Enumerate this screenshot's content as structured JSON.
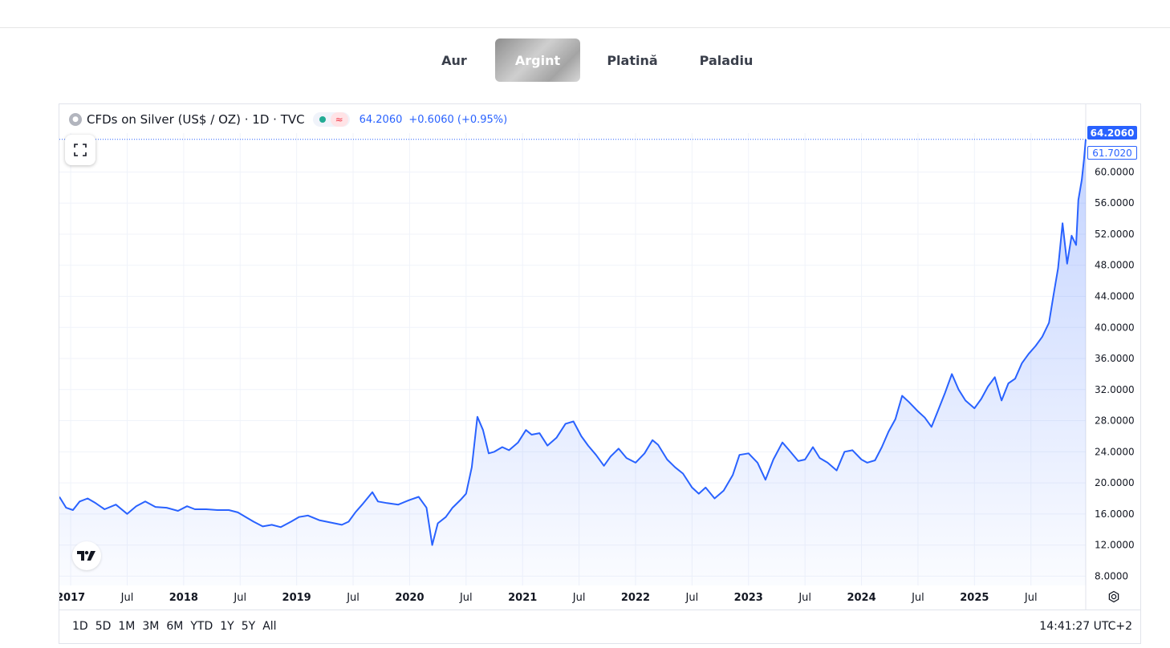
{
  "metal_tabs": [
    {
      "label": "Aur",
      "active": false
    },
    {
      "label": "Argint",
      "active": true
    },
    {
      "label": "Platină",
      "active": false
    },
    {
      "label": "Paladiu",
      "active": false
    }
  ],
  "legend": {
    "symbol": "CFDs on Silver (US$ / OZ) · 1D · TVC",
    "last_value": "64.2060",
    "change": "+0.6060 (+0.95%)",
    "status_icon": "green-dot-icon",
    "approx_icon": "≈"
  },
  "price_tags": {
    "last": "64.2060",
    "previous": "61.7020"
  },
  "time_ranges": [
    "1D",
    "5D",
    "1M",
    "3M",
    "6M",
    "YTD",
    "1Y",
    "5Y",
    "All"
  ],
  "clock": "14:41:27 UTC+2",
  "colors": {
    "line": "#2962ff",
    "active_tab": "#b0b0b0",
    "grid": "#f0f3fa"
  },
  "chart_data": {
    "type": "area",
    "title": "CFDs on Silver (US$ / OZ)",
    "xlabel": "",
    "ylabel": "",
    "y_tick_labels": [
      "8.0000",
      "12.0000",
      "16.0000",
      "20.0000",
      "24.0000",
      "28.0000",
      "32.0000",
      "36.0000",
      "40.0000",
      "44.0000",
      "48.0000",
      "52.0000",
      "56.0000",
      "60.0000"
    ],
    "y_ticks": [
      8,
      12,
      16,
      20,
      24,
      28,
      32,
      36,
      40,
      44,
      48,
      52,
      56,
      60
    ],
    "x_tick_labels": [
      {
        "label": "2017",
        "t": 2017.0
      },
      {
        "label": "Jul",
        "t": 2017.5
      },
      {
        "label": "2018",
        "t": 2018.0
      },
      {
        "label": "Jul",
        "t": 2018.5
      },
      {
        "label": "2019",
        "t": 2019.0
      },
      {
        "label": "Jul",
        "t": 2019.5
      },
      {
        "label": "2020",
        "t": 2020.0
      },
      {
        "label": "Jul",
        "t": 2020.5
      },
      {
        "label": "2021",
        "t": 2021.0
      },
      {
        "label": "Jul",
        "t": 2021.5
      },
      {
        "label": "2022",
        "t": 2022.0
      },
      {
        "label": "Jul",
        "t": 2022.5
      },
      {
        "label": "2023",
        "t": 2023.0
      },
      {
        "label": "Jul",
        "t": 2023.5
      },
      {
        "label": "2024",
        "t": 2024.0
      },
      {
        "label": "Jul",
        "t": 2024.5
      },
      {
        "label": "2025",
        "t": 2025.0
      },
      {
        "label": "Jul",
        "t": 2025.5
      }
    ],
    "series": [
      {
        "values": [
          [
            2016.9,
            18.2
          ],
          [
            2016.96,
            16.8
          ],
          [
            2017.02,
            16.5
          ],
          [
            2017.08,
            17.6
          ],
          [
            2017.15,
            18.0
          ],
          [
            2017.22,
            17.4
          ],
          [
            2017.3,
            16.6
          ],
          [
            2017.4,
            17.2
          ],
          [
            2017.5,
            16.0
          ],
          [
            2017.58,
            17.0
          ],
          [
            2017.66,
            17.6
          ],
          [
            2017.75,
            16.9
          ],
          [
            2017.85,
            16.8
          ],
          [
            2017.95,
            16.4
          ],
          [
            2018.03,
            17.0
          ],
          [
            2018.1,
            16.6
          ],
          [
            2018.2,
            16.6
          ],
          [
            2018.3,
            16.5
          ],
          [
            2018.4,
            16.5
          ],
          [
            2018.48,
            16.2
          ],
          [
            2018.55,
            15.6
          ],
          [
            2018.62,
            15.0
          ],
          [
            2018.7,
            14.4
          ],
          [
            2018.78,
            14.6
          ],
          [
            2018.86,
            14.3
          ],
          [
            2018.95,
            15.0
          ],
          [
            2019.02,
            15.6
          ],
          [
            2019.1,
            15.8
          ],
          [
            2019.2,
            15.2
          ],
          [
            2019.3,
            14.9
          ],
          [
            2019.4,
            14.6
          ],
          [
            2019.46,
            15.0
          ],
          [
            2019.52,
            16.2
          ],
          [
            2019.58,
            17.2
          ],
          [
            2019.67,
            18.8
          ],
          [
            2019.72,
            17.6
          ],
          [
            2019.8,
            17.4
          ],
          [
            2019.9,
            17.2
          ],
          [
            2020.0,
            17.8
          ],
          [
            2020.08,
            18.2
          ],
          [
            2020.15,
            16.8
          ],
          [
            2020.2,
            12.0
          ],
          [
            2020.25,
            14.8
          ],
          [
            2020.32,
            15.6
          ],
          [
            2020.38,
            16.8
          ],
          [
            2020.45,
            17.8
          ],
          [
            2020.5,
            18.6
          ],
          [
            2020.55,
            22.0
          ],
          [
            2020.6,
            28.5
          ],
          [
            2020.65,
            26.8
          ],
          [
            2020.7,
            23.8
          ],
          [
            2020.75,
            24.0
          ],
          [
            2020.82,
            24.6
          ],
          [
            2020.88,
            24.2
          ],
          [
            2020.96,
            25.2
          ],
          [
            2021.03,
            26.8
          ],
          [
            2021.08,
            26.2
          ],
          [
            2021.15,
            26.4
          ],
          [
            2021.22,
            24.8
          ],
          [
            2021.3,
            25.8
          ],
          [
            2021.38,
            27.6
          ],
          [
            2021.45,
            27.9
          ],
          [
            2021.52,
            26.0
          ],
          [
            2021.58,
            24.8
          ],
          [
            2021.65,
            23.6
          ],
          [
            2021.72,
            22.2
          ],
          [
            2021.78,
            23.4
          ],
          [
            2021.85,
            24.4
          ],
          [
            2021.92,
            23.2
          ],
          [
            2022.0,
            22.6
          ],
          [
            2022.08,
            23.8
          ],
          [
            2022.15,
            25.5
          ],
          [
            2022.2,
            24.9
          ],
          [
            2022.28,
            23.0
          ],
          [
            2022.35,
            22.0
          ],
          [
            2022.42,
            21.2
          ],
          [
            2022.5,
            19.4
          ],
          [
            2022.56,
            18.6
          ],
          [
            2022.62,
            19.4
          ],
          [
            2022.7,
            18.0
          ],
          [
            2022.78,
            19.0
          ],
          [
            2022.86,
            21.0
          ],
          [
            2022.92,
            23.6
          ],
          [
            2023.0,
            23.8
          ],
          [
            2023.08,
            22.6
          ],
          [
            2023.15,
            20.4
          ],
          [
            2023.22,
            23.0
          ],
          [
            2023.3,
            25.2
          ],
          [
            2023.36,
            24.2
          ],
          [
            2023.44,
            22.8
          ],
          [
            2023.5,
            23.0
          ],
          [
            2023.57,
            24.6
          ],
          [
            2023.63,
            23.2
          ],
          [
            2023.7,
            22.6
          ],
          [
            2023.78,
            21.6
          ],
          [
            2023.85,
            24.0
          ],
          [
            2023.92,
            24.2
          ],
          [
            2024.0,
            23.0
          ],
          [
            2024.05,
            22.6
          ],
          [
            2024.12,
            22.9
          ],
          [
            2024.18,
            24.6
          ],
          [
            2024.24,
            26.6
          ],
          [
            2024.3,
            28.2
          ],
          [
            2024.36,
            31.2
          ],
          [
            2024.42,
            30.4
          ],
          [
            2024.5,
            29.2
          ],
          [
            2024.56,
            28.4
          ],
          [
            2024.62,
            27.2
          ],
          [
            2024.68,
            29.4
          ],
          [
            2024.74,
            31.6
          ],
          [
            2024.8,
            34.0
          ],
          [
            2024.86,
            32.0
          ],
          [
            2024.92,
            30.6
          ],
          [
            2025.0,
            29.6
          ],
          [
            2025.06,
            30.8
          ],
          [
            2025.12,
            32.4
          ],
          [
            2025.18,
            33.6
          ],
          [
            2025.24,
            30.6
          ],
          [
            2025.3,
            32.8
          ],
          [
            2025.36,
            33.4
          ],
          [
            2025.42,
            35.4
          ],
          [
            2025.48,
            36.6
          ],
          [
            2025.54,
            37.6
          ],
          [
            2025.6,
            38.8
          ],
          [
            2025.66,
            40.6
          ],
          [
            2025.7,
            44.2
          ],
          [
            2025.74,
            47.6
          ],
          [
            2025.78,
            53.4
          ],
          [
            2025.82,
            48.2
          ],
          [
            2025.86,
            51.8
          ],
          [
            2025.9,
            50.6
          ],
          [
            2025.92,
            56.4
          ],
          [
            2025.95,
            59.0
          ],
          [
            2025.97,
            61.7
          ],
          [
            2025.985,
            64.206
          ]
        ]
      }
    ],
    "xlim": [
      2016.9,
      2025.985
    ],
    "ylim": [
      6.8,
      65.0
    ],
    "grid": true
  }
}
